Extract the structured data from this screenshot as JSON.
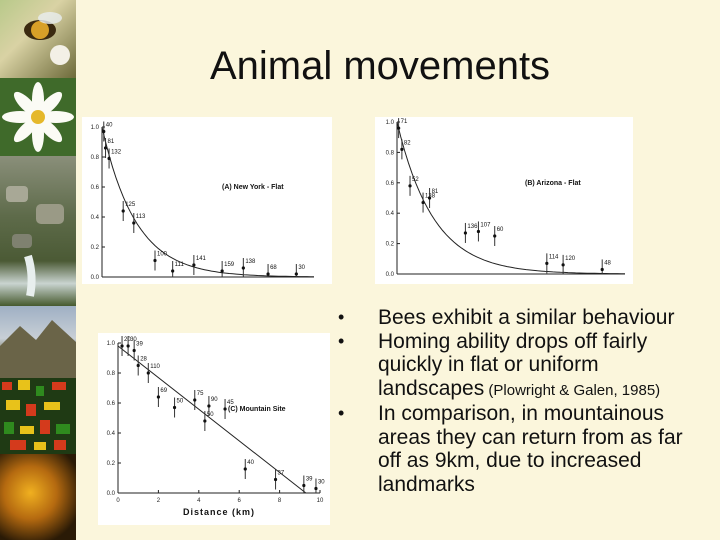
{
  "slide": {
    "title": "Animal movements",
    "bullets": [
      {
        "text": "Bees exhibit a similar behaviour",
        "cite": ""
      },
      {
        "text": "Homing ability drops off fairly quickly in flat or uniform landscapes",
        "cite": " (Plowright & Galen, 1985)"
      },
      {
        "text": "In comparison, in mountainous areas they can return from as far off as 9km, due to increased landmarks",
        "cite": ""
      }
    ],
    "side_images": [
      "bee-on-flower",
      "white-daisy",
      "rocky-stream",
      "mountain-landscape",
      "aerial-map",
      "golden-flower"
    ]
  },
  "chart_data": [
    {
      "type": "scatter",
      "title": "(A) New York - Flat",
      "xlabel": "",
      "ylabel": "",
      "ylim": [
        0,
        1.0
      ],
      "yticks": [
        "0.0",
        "0.2",
        "0.4",
        "0.6",
        "0.8",
        "1.0"
      ],
      "fit": "curve",
      "points": [
        {
          "x": 0.05,
          "y": 0.97,
          "label": "40"
        },
        {
          "x": 0.1,
          "y": 0.86,
          "label": "81"
        },
        {
          "x": 0.2,
          "y": 0.79,
          "label": "132"
        },
        {
          "x": 0.6,
          "y": 0.44,
          "label": "125"
        },
        {
          "x": 0.9,
          "y": 0.36,
          "label": "113"
        },
        {
          "x": 1.5,
          "y": 0.11,
          "label": "100"
        },
        {
          "x": 2.0,
          "y": 0.04,
          "label": "111"
        },
        {
          "x": 2.6,
          "y": 0.08,
          "label": "141"
        },
        {
          "x": 3.4,
          "y": 0.04,
          "label": "159"
        },
        {
          "x": 4.0,
          "y": 0.06,
          "label": "138"
        },
        {
          "x": 4.7,
          "y": 0.02,
          "label": "68"
        },
        {
          "x": 5.5,
          "y": 0.02,
          "label": "30"
        }
      ]
    },
    {
      "type": "scatter",
      "title": "(B) Arizona - Flat",
      "xlabel": "",
      "ylabel": "",
      "ylim": [
        0,
        1.0
      ],
      "yticks": [
        "0.0",
        "0.2",
        "0.4",
        "0.6",
        "0.8",
        "1.0"
      ],
      "fit": "curve",
      "points": [
        {
          "x": 0.05,
          "y": 0.96,
          "label": "71"
        },
        {
          "x": 0.15,
          "y": 0.82,
          "label": "82"
        },
        {
          "x": 0.4,
          "y": 0.58,
          "label": "52"
        },
        {
          "x": 0.8,
          "y": 0.47,
          "label": "138"
        },
        {
          "x": 1.0,
          "y": 0.5,
          "label": "81"
        },
        {
          "x": 2.1,
          "y": 0.27,
          "label": "136"
        },
        {
          "x": 2.5,
          "y": 0.28,
          "label": "107"
        },
        {
          "x": 3.0,
          "y": 0.25,
          "label": "60"
        },
        {
          "x": 4.6,
          "y": 0.07,
          "label": "114"
        },
        {
          "x": 5.1,
          "y": 0.06,
          "label": "120"
        },
        {
          "x": 6.3,
          "y": 0.03,
          "label": "48"
        }
      ]
    },
    {
      "type": "scatter",
      "title": "(C) Mountain Site",
      "xlabel": "Distance (km)",
      "ylabel": "",
      "ylim": [
        0,
        1.0
      ],
      "xlim": [
        0,
        10
      ],
      "xticks": [
        "0",
        "2",
        "4",
        "6",
        "8",
        "10"
      ],
      "yticks": [
        "0.0",
        "0.2",
        "0.4",
        "0.6",
        "0.8",
        "1.0"
      ],
      "fit": "line",
      "points": [
        {
          "x": 0.2,
          "y": 0.98,
          "label": "20"
        },
        {
          "x": 0.5,
          "y": 0.98,
          "label": "30"
        },
        {
          "x": 0.8,
          "y": 0.95,
          "label": "39"
        },
        {
          "x": 1.0,
          "y": 0.85,
          "label": "28"
        },
        {
          "x": 1.5,
          "y": 0.8,
          "label": "110"
        },
        {
          "x": 2.0,
          "y": 0.64,
          "label": "69"
        },
        {
          "x": 2.8,
          "y": 0.57,
          "label": "50"
        },
        {
          "x": 3.8,
          "y": 0.62,
          "label": "75"
        },
        {
          "x": 4.3,
          "y": 0.48,
          "label": "50"
        },
        {
          "x": 4.5,
          "y": 0.58,
          "label": "90"
        },
        {
          "x": 5.3,
          "y": 0.56,
          "label": "45"
        },
        {
          "x": 6.3,
          "y": 0.16,
          "label": "40"
        },
        {
          "x": 7.8,
          "y": 0.09,
          "label": "37"
        },
        {
          "x": 9.2,
          "y": 0.05,
          "label": "39"
        },
        {
          "x": 9.8,
          "y": 0.03,
          "label": "30"
        }
      ]
    }
  ]
}
